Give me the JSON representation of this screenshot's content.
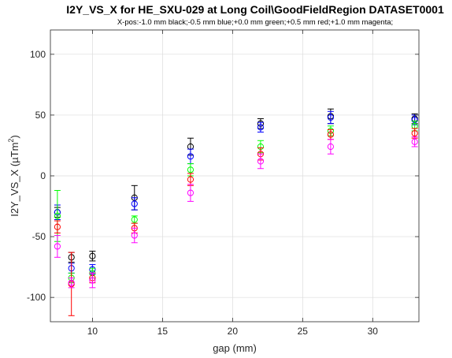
{
  "chart_data": {
    "type": "scatter",
    "title": "I2Y_VS_X for HE_SXU-029 at Long Coil\\GoodFieldRegion DATASET0001",
    "subtitle": "X-pos:-1.0 mm black;-0.5 mm blue;+0.0 mm green;+0.5 mm red;+1.0 mm magenta;",
    "xlabel": "gap (mm)",
    "ylabel_main": "I2Y_VS_X (µTm",
    "ylabel_sup": "2",
    "ylabel_end": ")",
    "xlim": [
      7,
      33.3
    ],
    "ylim": [
      -120,
      120
    ],
    "xticks": [
      10,
      15,
      20,
      25,
      30
    ],
    "yticks": [
      -100,
      -50,
      0,
      50,
      100
    ],
    "grid": true,
    "legend": "none",
    "series": [
      {
        "color": "#000000",
        "x": [
          7.5,
          8.5,
          10,
          13,
          17,
          22,
          27,
          33
        ],
        "y": [
          -30,
          -67,
          -66,
          -18,
          24,
          43,
          49,
          47
        ],
        "err": [
          4,
          4,
          4,
          10,
          7,
          4,
          6,
          4
        ]
      },
      {
        "color": "#0000ff",
        "x": [
          7.5,
          8.5,
          10,
          13,
          17,
          22,
          27,
          33
        ],
        "y": [
          -30,
          -76,
          -77,
          -23,
          16,
          40,
          48,
          46
        ],
        "err": [
          6,
          4,
          4,
          5,
          6,
          4,
          5,
          4
        ]
      },
      {
        "color": "#00ff00",
        "x": [
          7.5,
          8.5,
          10,
          13,
          17,
          22,
          27,
          33
        ],
        "y": [
          -33,
          -84,
          -80,
          -36,
          5,
          24,
          37,
          41
        ],
        "err": [
          21,
          4,
          4,
          3,
          5,
          5,
          4,
          4
        ]
      },
      {
        "color": "#ff0000",
        "x": [
          7.5,
          8.5,
          10,
          13,
          17,
          22,
          27,
          33
        ],
        "y": [
          -42,
          -89,
          -84,
          -43,
          -3,
          18,
          34,
          35
        ],
        "err": [
          5,
          26,
          4,
          4,
          5,
          5,
          4,
          4
        ]
      },
      {
        "color": "#ff00ff",
        "x": [
          7.5,
          8.5,
          10,
          13,
          17,
          22,
          27,
          33
        ],
        "y": [
          -58,
          -88,
          -86,
          -49,
          -14,
          12,
          24,
          28
        ],
        "err": [
          9,
          4,
          6,
          6,
          7,
          6,
          6,
          4
        ]
      }
    ]
  }
}
